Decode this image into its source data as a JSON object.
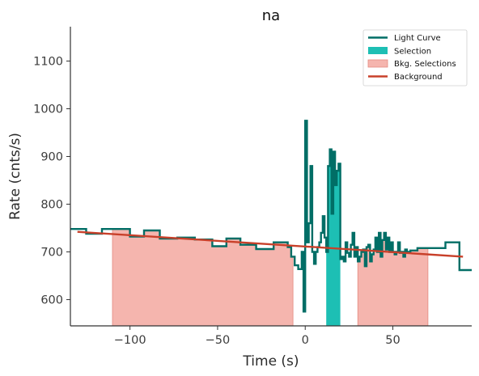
{
  "chart_data": {
    "type": "line",
    "title": "na",
    "xlabel": "Time (s)",
    "ylabel": "Rate (cnts/s)",
    "xlim": [
      -134,
      95
    ],
    "ylim": [
      545,
      1172
    ],
    "xticks": [
      -100,
      -50,
      0,
      50
    ],
    "yticks": [
      600,
      700,
      800,
      900,
      1000,
      1100
    ],
    "grid": false,
    "legend_position": "top-right",
    "legend": [
      {
        "label": "Light Curve",
        "kind": "line",
        "color": "#016e66"
      },
      {
        "label": "Selection",
        "kind": "patch",
        "color": "#1dbfb4"
      },
      {
        "label": "Bkg. Selections",
        "kind": "patch",
        "color": "#f5b5ae"
      },
      {
        "label": "Background",
        "kind": "line",
        "color": "#c8402a"
      }
    ],
    "light_curve": {
      "name": "Light Curve",
      "color": "#016e66",
      "style": "steps-post",
      "x": [
        -134,
        -125,
        -116,
        -100,
        -92,
        -83,
        -73,
        -63,
        -53,
        -45,
        -37,
        -28,
        -18,
        -10,
        -8,
        -6,
        -4,
        -2,
        -1,
        0,
        1,
        2,
        3,
        4,
        5,
        6,
        7,
        8,
        9,
        10,
        11,
        12,
        13,
        14,
        15,
        16,
        17,
        18,
        19,
        20,
        21,
        22,
        23,
        24,
        25,
        26,
        27,
        28,
        29,
        30,
        31,
        32,
        33,
        34,
        35,
        36,
        37,
        38,
        39,
        40,
        41,
        42,
        43,
        44,
        45,
        46,
        47,
        48,
        49,
        50,
        51,
        52,
        53,
        54,
        55,
        56,
        57,
        58,
        60,
        64,
        72,
        80,
        88,
        95
      ],
      "y": [
        748,
        738,
        748,
        732,
        745,
        728,
        730,
        726,
        712,
        728,
        715,
        706,
        720,
        710,
        690,
        672,
        664,
        700,
        575,
        975,
        720,
        760,
        880,
        700,
        675,
        700,
        710,
        720,
        740,
        775,
        730,
        700,
        880,
        915,
        780,
        910,
        840,
        870,
        885,
        685,
        690,
        680,
        720,
        698,
        690,
        715,
        740,
        690,
        710,
        680,
        690,
        700,
        705,
        670,
        710,
        715,
        680,
        695,
        705,
        730,
        700,
        740,
        690,
        725,
        740,
        705,
        730,
        700,
        720,
        700,
        695,
        700,
        720,
        698,
        700,
        690,
        705,
        700,
        703,
        708,
        708,
        720,
        662,
        662
      ]
    },
    "selection": {
      "name": "Selection",
      "color": "#1dbfb4",
      "x_range": [
        12,
        20
      ]
    },
    "bkg_selections": {
      "name": "Bkg. Selections",
      "color": "#f5b5ae",
      "ranges": [
        [
          -110,
          -7
        ],
        [
          30,
          70
        ]
      ]
    },
    "background": {
      "name": "Background",
      "color": "#c8402a",
      "x": [
        -130,
        90
      ],
      "y": [
        742,
        690
      ]
    }
  }
}
